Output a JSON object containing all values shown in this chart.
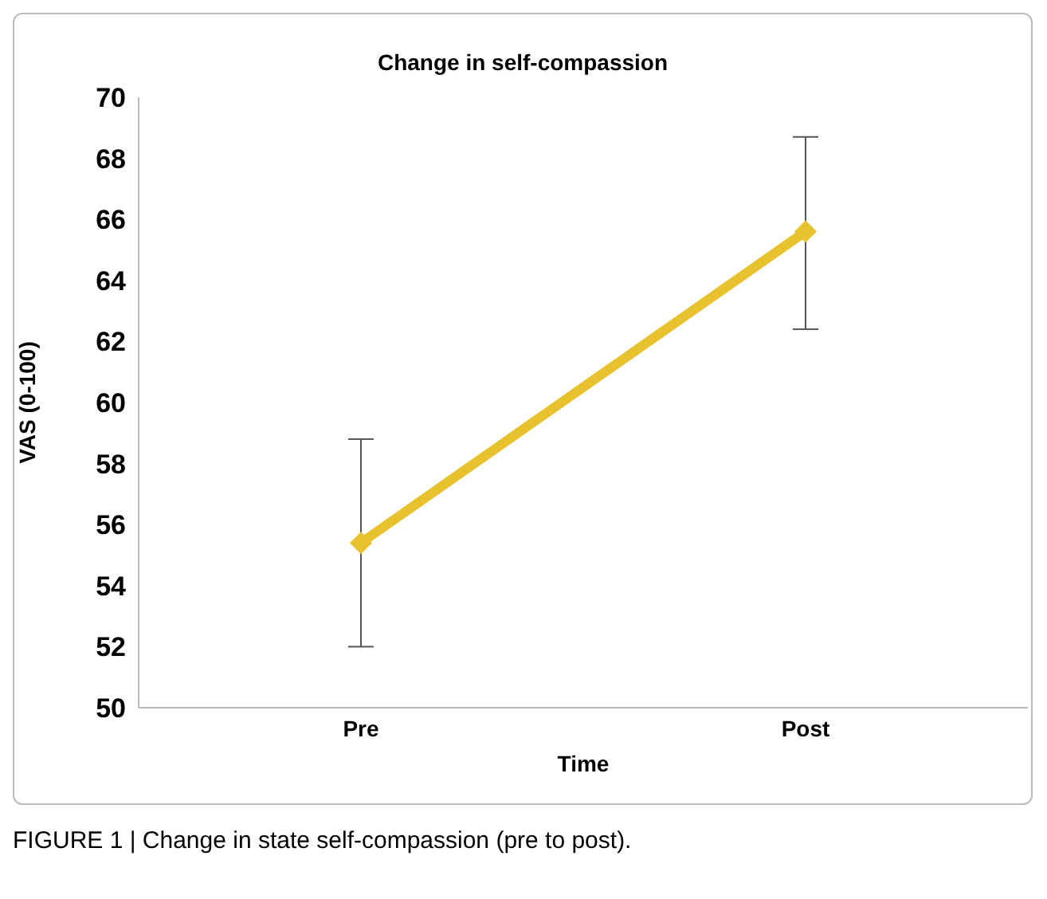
{
  "chart_data": {
    "type": "line",
    "title": "Change in self-compassion",
    "xlabel": "Time",
    "ylabel": "VAS (0-100)",
    "categories": [
      "Pre",
      "Post"
    ],
    "series": [
      {
        "color": "#e8c22e",
        "values": [
          55.4,
          65.6
        ],
        "errors": [
          [
            52.0,
            58.8
          ],
          [
            62.4,
            68.7
          ]
        ]
      }
    ],
    "ylim": [
      50,
      70
    ],
    "yticks": [
      50,
      52,
      54,
      56,
      58,
      60,
      62,
      64,
      66,
      68,
      70
    ],
    "grid": false,
    "legend": false,
    "marker": "diamond",
    "line_style": "solid",
    "annotations": [
      "FIGURE 1 | Change in state self-compassion (pre to post)."
    ]
  }
}
